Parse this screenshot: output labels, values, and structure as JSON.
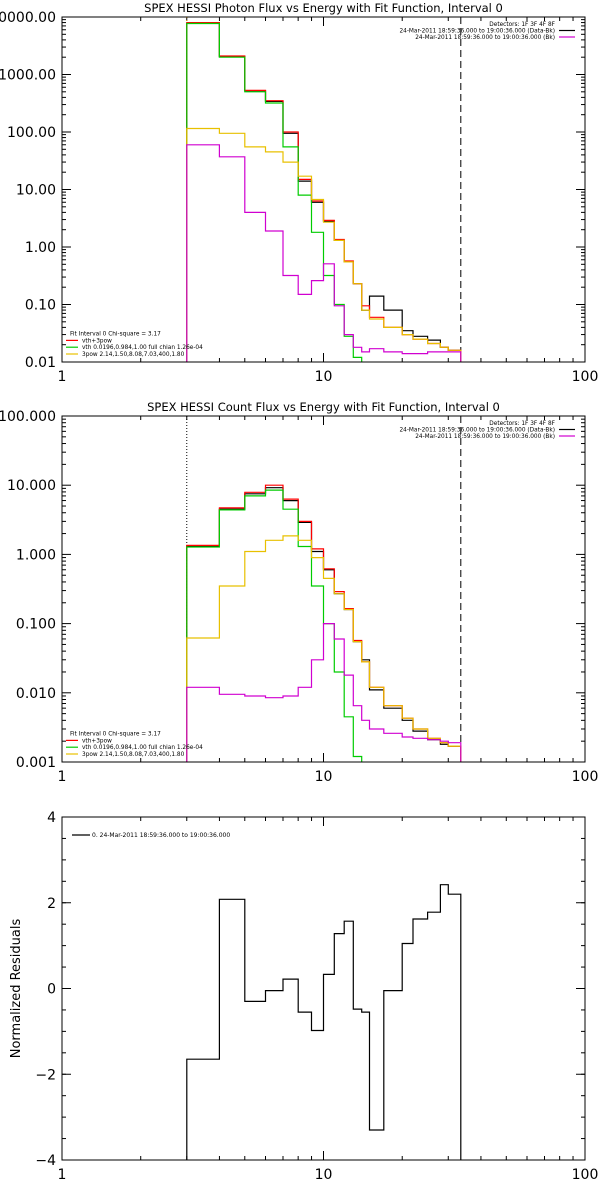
{
  "chart_data": [
    {
      "type": "line",
      "title": "SPEX HESSI Photon Flux vs Energy with Fit Function, Interval 0",
      "xscale": "log",
      "yscale": "log",
      "xlim": [
        1,
        100
      ],
      "ylim": [
        0.01,
        10000
      ],
      "xticks": [
        {
          "v": 1,
          "label": "1"
        },
        {
          "v": 10,
          "label": "10"
        },
        {
          "v": 100,
          "label": "100"
        }
      ],
      "yticks": [
        {
          "v": 10000,
          "label": "10000.00"
        },
        {
          "v": 1000,
          "label": "1000.00"
        },
        {
          "v": 100,
          "label": "100.00"
        },
        {
          "v": 10,
          "label": "10.00"
        },
        {
          "v": 1,
          "label": "1.00"
        },
        {
          "v": 0.1,
          "label": "0.10"
        },
        {
          "v": 0.01,
          "label": "0.01"
        }
      ],
      "legend_top": {
        "lines": [
          {
            "text": "Detectors: 1F 3F 4F 8F",
            "color": ""
          },
          {
            "text": "24-Mar-2011 18:59:36.000 to 19:00:36.000 (Data-Bk)",
            "color": "#000000"
          },
          {
            "text": "24-Mar-2011 18:59:36.000 to 19:00:36.000 (Bk)",
            "color": "#d000d0"
          }
        ]
      },
      "legend_bottom": {
        "lines": [
          {
            "text": "Fit Interval 0   Chi-square = 3.17",
            "color": ""
          },
          {
            "text": "vth+3pow",
            "color": "#ff0000"
          },
          {
            "text": "vth 0.0196,0.984,1.00  full chian 1.26e-04",
            "color": "#00cc00"
          },
          {
            "text": "3pow 2.14,1.50,8.08,7.03,400,1.80",
            "color": "#e8c000"
          }
        ]
      },
      "vlines": [
        {
          "x": 3.0,
          "style": "dotted",
          "color": "#e8a000"
        },
        {
          "x": 33.5,
          "style": "dashed",
          "color": "#000000"
        }
      ],
      "bin_edges": [
        3.0,
        4.0,
        5.0,
        6.0,
        7.0,
        8.0,
        9.0,
        10.0,
        11.0,
        12.0,
        13.0,
        14.0,
        15.0,
        17.0,
        20.0,
        22.0,
        25.0,
        28.0,
        30.0,
        33.5
      ],
      "series": [
        {
          "name": "Data-Bk",
          "color": "#000000",
          "values": [
            7800,
            2050,
            520,
            340,
            95,
            14,
            6.0,
            2.8,
            1.3,
            0.55,
            0.23,
            0.08,
            0.14,
            0.08,
            0.035,
            0.028,
            0.024,
            0.018,
            0.016
          ]
        },
        {
          "name": "vth+3pow",
          "color": "#ff0000",
          "values": [
            8000,
            2100,
            530,
            350,
            100,
            15,
            6.3,
            2.9,
            1.35,
            0.57,
            0.23,
            0.095,
            0.06,
            0.04,
            0.03,
            0.025,
            0.021,
            0.018,
            0.016
          ]
        },
        {
          "name": "vth",
          "color": "#00cc00",
          "values": [
            7700,
            2000,
            500,
            320,
            55,
            8.0,
            1.8,
            0.32,
            0.1,
            0.028,
            0.012,
            0.008
          ]
        },
        {
          "name": "3pow",
          "color": "#e8c000",
          "values": [
            115,
            95,
            55,
            45,
            30,
            17,
            6.7,
            2.7,
            1.3,
            0.55,
            0.23,
            0.08,
            0.056,
            0.04,
            0.03,
            0.025,
            0.021,
            0.018,
            0.016
          ]
        },
        {
          "name": "Bk",
          "color": "#d000d0",
          "values": [
            60,
            37,
            4.0,
            1.9,
            0.32,
            0.15,
            0.26,
            0.51,
            0.095,
            0.03,
            0.018,
            0.015,
            0.017,
            0.015,
            0.014,
            0.014,
            0.015,
            0.015,
            0.015
          ]
        }
      ]
    },
    {
      "type": "line",
      "title": "SPEX HESSI Count Flux vs Energy with Fit Function, Interval 0",
      "xscale": "log",
      "yscale": "log",
      "xlim": [
        1,
        100
      ],
      "ylim": [
        0.001,
        100
      ],
      "xticks": [
        {
          "v": 1,
          "label": "1"
        },
        {
          "v": 10,
          "label": "10"
        },
        {
          "v": 100,
          "label": "100"
        }
      ],
      "yticks": [
        {
          "v": 100,
          "label": "100.000"
        },
        {
          "v": 10,
          "label": "10.000"
        },
        {
          "v": 1,
          "label": "1.000"
        },
        {
          "v": 0.1,
          "label": "0.100"
        },
        {
          "v": 0.01,
          "label": "0.010"
        },
        {
          "v": 0.001,
          "label": "0.001"
        }
      ],
      "legend_top": {
        "lines": [
          {
            "text": "Detectors: 1F 3F 4F 8F",
            "color": ""
          },
          {
            "text": "24-Mar-2011 18:59:36.000 to 19:00:36.000 (Data-Bk)",
            "color": "#000000"
          },
          {
            "text": "24-Mar-2011 18:59:36.000 to 19:00:36.000 (Bk)",
            "color": "#d000d0"
          }
        ]
      },
      "legend_bottom": {
        "lines": [
          {
            "text": "Fit Interval 0   Chi-square = 3.17",
            "color": ""
          },
          {
            "text": "vth+3pow",
            "color": "#ff0000"
          },
          {
            "text": "vth 0.0196,0.984,1.00  full chian 1.26e-04",
            "color": "#00cc00"
          },
          {
            "text": "3pow 2.14,1.50,8.08,7.03,400,1.80",
            "color": "#e8c000"
          }
        ]
      },
      "vlines": [
        {
          "x": 3.0,
          "style": "dotted",
          "color": "#000000"
        },
        {
          "x": 33.5,
          "style": "dashed",
          "color": "#000000"
        }
      ],
      "bin_edges": [
        3.0,
        4.0,
        5.0,
        6.0,
        7.0,
        8.0,
        9.0,
        10.0,
        11.0,
        12.0,
        13.0,
        14.0,
        15.0,
        17.0,
        20.0,
        22.0,
        25.0,
        28.0,
        30.0,
        33.5
      ],
      "series": [
        {
          "name": "Data-Bk",
          "color": "#000000",
          "values": [
            1.3,
            4.5,
            7.5,
            9.2,
            6.0,
            2.9,
            1.1,
            0.6,
            0.27,
            0.16,
            0.055,
            0.03,
            0.011,
            0.006,
            0.004,
            0.0028,
            0.0021,
            0.0018,
            0.0017
          ]
        },
        {
          "name": "vth+3pow",
          "color": "#ff0000",
          "values": [
            1.35,
            4.7,
            7.9,
            10.0,
            6.3,
            3.0,
            1.2,
            0.62,
            0.29,
            0.165,
            0.057,
            0.028,
            0.012,
            0.0065,
            0.0043,
            0.003,
            0.0022,
            0.0019,
            0.0017
          ]
        },
        {
          "name": "vth",
          "color": "#00cc00",
          "values": [
            1.28,
            4.4,
            7.0,
            8.5,
            4.5,
            1.3,
            0.35,
            0.1,
            0.02,
            0.0045,
            0.0012,
            0.0004
          ]
        },
        {
          "name": "3pow",
          "color": "#e8c000",
          "values": [
            0.062,
            0.35,
            1.1,
            1.6,
            1.85,
            1.6,
            0.9,
            0.45,
            0.27,
            0.16,
            0.055,
            0.028,
            0.012,
            0.0065,
            0.0043,
            0.003,
            0.0022,
            0.0019,
            0.0017
          ]
        },
        {
          "name": "Bk",
          "color": "#d000d0",
          "values": [
            0.012,
            0.0095,
            0.009,
            0.0085,
            0.009,
            0.012,
            0.03,
            0.1,
            0.06,
            0.018,
            0.0065,
            0.004,
            0.003,
            0.0026,
            0.0023,
            0.0022,
            0.0021,
            0.002,
            0.0019
          ]
        }
      ]
    },
    {
      "type": "line",
      "title": "",
      "xscale": "log",
      "yscale": "linear",
      "xlim": [
        1,
        100
      ],
      "ylim": [
        -4,
        4
      ],
      "ylabel": "Normalized Residuals",
      "xticks": [
        {
          "v": 1,
          "label": "1"
        },
        {
          "v": 10,
          "label": "10"
        },
        {
          "v": 100,
          "label": "100"
        }
      ],
      "yticks": [
        {
          "v": 4,
          "label": "4"
        },
        {
          "v": 2,
          "label": "2"
        },
        {
          "v": 0,
          "label": "0"
        },
        {
          "v": -2,
          "label": "−2"
        },
        {
          "v": -4,
          "label": "−4"
        }
      ],
      "legend_top": {
        "lines": [
          {
            "text": "0. 24-Mar-2011 18:59:36.000 to 19:00:36.000",
            "color": "#000000"
          }
        ]
      },
      "bin_edges": [
        3.0,
        4.0,
        5.0,
        6.0,
        7.0,
        8.0,
        9.0,
        10.0,
        11.0,
        12.0,
        13.0,
        14.0,
        15.0,
        17.0,
        20.0,
        22.0,
        25.0,
        28.0,
        30.0,
        33.5
      ],
      "series": [
        {
          "name": "0. 24-Mar-2011 18:59:36.000 to 19:00:36.000",
          "color": "#000000",
          "values": [
            -1.65,
            2.08,
            -0.3,
            -0.05,
            0.22,
            -0.55,
            -0.98,
            0.33,
            1.28,
            1.57,
            -0.48,
            -0.55,
            -3.3,
            -0.05,
            1.05,
            1.62,
            1.78,
            2.42,
            2.2
          ]
        }
      ]
    }
  ]
}
